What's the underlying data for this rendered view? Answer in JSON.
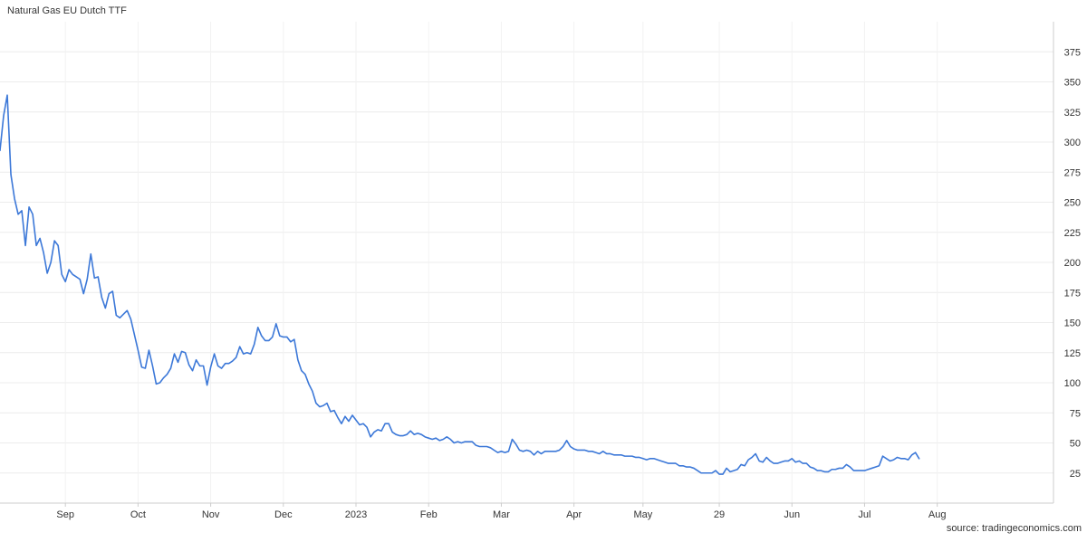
{
  "chart_data": {
    "type": "line",
    "title": "Natural Gas EU Dutch TTF",
    "source": "source: tradingeconomics.com",
    "xlabel": "",
    "ylabel": "",
    "y_range": [
      0,
      400
    ],
    "y_ticks": [
      25,
      50,
      75,
      100,
      125,
      150,
      175,
      200,
      225,
      250,
      275,
      300,
      325,
      350,
      375
    ],
    "y_axis_side": "right",
    "grid": true,
    "legend": "none",
    "line_color": "#3c78d8",
    "x_range": [
      0,
      290
    ],
    "x_ticks": [
      {
        "label": "Sep",
        "at": 18
      },
      {
        "label": "Oct",
        "at": 38
      },
      {
        "label": "Nov",
        "at": 58
      },
      {
        "label": "Dec",
        "at": 78
      },
      {
        "label": "2023",
        "at": 98
      },
      {
        "label": "Feb",
        "at": 118
      },
      {
        "label": "Mar",
        "at": 138
      },
      {
        "label": "Apr",
        "at": 158
      },
      {
        "label": "May",
        "at": 177
      },
      {
        "label": "29",
        "at": 198
      },
      {
        "label": "Jun",
        "at": 218
      },
      {
        "label": "Jul",
        "at": 238
      },
      {
        "label": "Aug",
        "at": 258
      }
    ],
    "series": [
      {
        "values": [
          293,
          322,
          339,
          273,
          253,
          240,
          243,
          214,
          246,
          240,
          214,
          220,
          208,
          191,
          200,
          218,
          214,
          190,
          184,
          194,
          190,
          188,
          186,
          174,
          186,
          207,
          187,
          188,
          171,
          162,
          174,
          176,
          156,
          154,
          157,
          160,
          153,
          140,
          127,
          113,
          112,
          127,
          114,
          99,
          100,
          104,
          107,
          112,
          124,
          117,
          126,
          125,
          115,
          110,
          119,
          114,
          114,
          98,
          113,
          124,
          114,
          112,
          116,
          116,
          118,
          121,
          130,
          124,
          125,
          124,
          132,
          146,
          139,
          135,
          135,
          138,
          149,
          139,
          138,
          138,
          134,
          136,
          119,
          110,
          107,
          99,
          93,
          83,
          80,
          81,
          83,
          76,
          77,
          71,
          66,
          72,
          68,
          73,
          69,
          65,
          66,
          63,
          55,
          59,
          61,
          60,
          66,
          66,
          59,
          57,
          56,
          56,
          57,
          60,
          57,
          58,
          57,
          55,
          54,
          53,
          54,
          52,
          53,
          55,
          53,
          50,
          51,
          50,
          51,
          51,
          51,
          48,
          47,
          47,
          47,
          46,
          44,
          42,
          43,
          42,
          43,
          53,
          49,
          44,
          43,
          44,
          43,
          40,
          43,
          41,
          43,
          43,
          43,
          43,
          44,
          47,
          52,
          47,
          45,
          44,
          44,
          44,
          43,
          43,
          42,
          41,
          43,
          41,
          41,
          40,
          40,
          40,
          39,
          39,
          39,
          38,
          38,
          37,
          36,
          37,
          37,
          36,
          35,
          34,
          33,
          33,
          33,
          31,
          31,
          30,
          30,
          29,
          27,
          25,
          25,
          25,
          25,
          27,
          24,
          24,
          29,
          26,
          27,
          28,
          32,
          31,
          36,
          38,
          41,
          35,
          34,
          38,
          35,
          33,
          33,
          34,
          35,
          35,
          37,
          34,
          35,
          33,
          33,
          30,
          29,
          27,
          27,
          26,
          26,
          28,
          28,
          29,
          29,
          32,
          30,
          27,
          27,
          27,
          27,
          28,
          29,
          30,
          31,
          39,
          37,
          35,
          36,
          38,
          37,
          37,
          36,
          40,
          42,
          37
        ]
      }
    ]
  }
}
